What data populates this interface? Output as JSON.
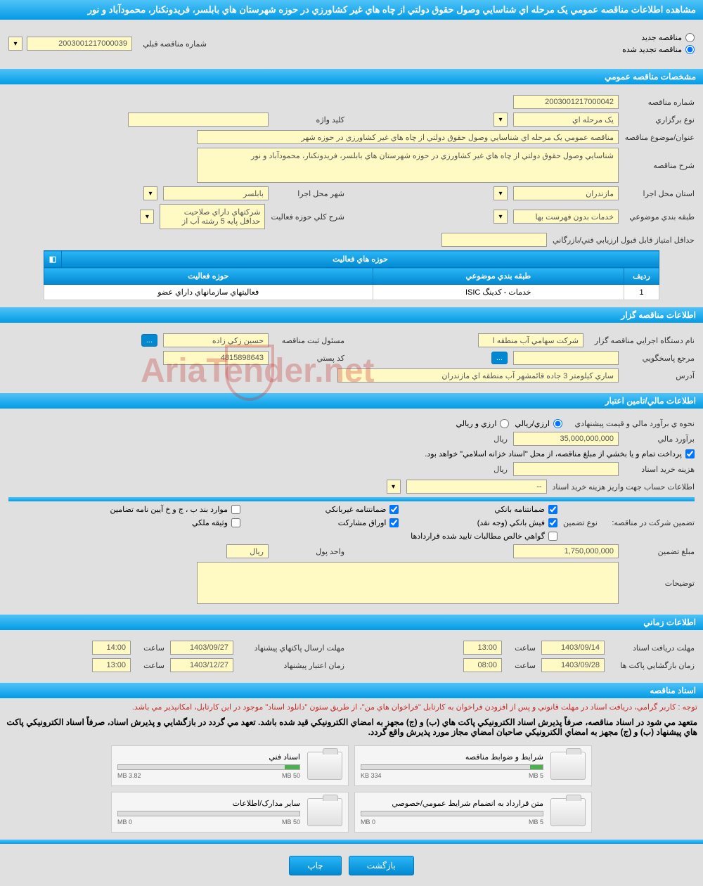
{
  "page_title": "مشاهده اطلاعات مناقصه عمومي يک مرحله اي شناسايي وصول حقوق دولتي از چاه هاي غير کشاورزي در حوزه شهرستان هاي بابلسر، فريدونکنار، محمودآباد و نور",
  "radios": {
    "new": "مناقصه جديد",
    "renewed": "مناقصه تجديد شده"
  },
  "prev_number_label": "شماره مناقصه قبلي",
  "prev_number": "2003001217000039",
  "sections": {
    "general": "مشخصات مناقصه عمومي",
    "organizer": "اطلاعات مناقصه گزار",
    "financial": "اطلاعات مالي/تامين اعتبار",
    "schedule": "اطلاعات زماني",
    "documents": "اسناد مناقصه"
  },
  "general": {
    "number_label": "شماره مناقصه",
    "number": "2003001217000042",
    "type_label": "نوع برگزاري",
    "type": "يک مرحله اي",
    "keyword_label": "کليد واژه",
    "keyword": "",
    "title_label": "عنوان/موضوع مناقصه",
    "title": "مناقصه عمومي يک مرحله اي شناسايي وصول حقوق دولتي از چاه هاي غير کشاورزي در حوزه شهر",
    "desc_label": "شرح مناقصه",
    "desc": "شناسايي وصول حقوق دولتي از چاه هاي غير کشاورزي در حوزه شهرستان هاي بابلسر، فريدونکنار، محمودآباد و نور",
    "province_label": "استان محل اجرا",
    "province": "مازندران",
    "city_label": "شهر محل اجرا",
    "city": "بابلسر",
    "category_label": "طبقه بندي موضوعي",
    "category": "خدمات بدون فهرست بها",
    "activity_desc_label": "شرح کلي حوزه فعاليت",
    "activity_desc": "شرکتهاي داراي صلاحيت حداقل پايه 5 رشته آب از",
    "min_score_label": "حداقل امتياز قابل قبول ارزيابي فني/بازرگاني",
    "min_score": ""
  },
  "activity_table": {
    "title": "حوزه هاي فعاليت",
    "col_row": "رديف",
    "col_category": "طبقه بندي موضوعي",
    "col_activity": "حوزه فعاليت",
    "rows": [
      {
        "idx": "1",
        "category": "خدمات - کدينگ ISIC",
        "activity": "فعاليتهاي سازمانهاي داراي عضو"
      }
    ]
  },
  "organizer": {
    "agency_label": "نام دستگاه اجرايي مناقصه گزار",
    "agency": "شرکت سهامي آب منطقه ا",
    "registrar_label": "مسئول ثبت مناقصه",
    "registrar": "حسين زکي زاده",
    "more": "...",
    "contact_label": "مرجع پاسخگويي",
    "contact": "",
    "postal_label": "کد پستي",
    "postal": "4815898643",
    "address_label": "آدرس",
    "address": "ساري کيلومتر 3 جاده قائمشهر آب منطقه اي مازندران"
  },
  "financial": {
    "method_label": "نحوه ي برآورد مالي و قيمت پيشنهادي",
    "method_opt1": "ارزي/ريالي",
    "method_opt2": "ارزي و ريالي",
    "estimate_label": "برآورد مالي",
    "estimate": "35,000,000,000",
    "currency": "ريال",
    "payment_note": "پرداخت تمام و يا بخشي از مبلغ مناقصه، از محل \"اسناد خزانه اسلامي\" خواهد بود.",
    "doc_cost_label": "هزينه خريد اسناد",
    "doc_cost": "",
    "account_label": "اطلاعات حساب جهت واريز هزينه خريد اسناد",
    "account": "--",
    "guarantee_label": "تضمين شرکت در مناقصه:",
    "guarantee_type_label": "نوع تضمين",
    "chk1": "ضمانتنامه بانکي",
    "chk2": "ضمانتنامه غيربانکي",
    "chk3": "موارد بند ب ، ج و خ آيين نامه تضامين",
    "chk4": "فيش بانکي (وجه نقد)",
    "chk5": "اوراق مشارکت",
    "chk6": "وثيقه ملکي",
    "chk7": "گواهي خالص مطالبات تاييد شده قراردادها",
    "amount_label": "مبلغ تضمين",
    "amount": "1,750,000,000",
    "unit_label": "واحد پول",
    "unit": "ريال",
    "notes_label": "توضيحات",
    "notes": ""
  },
  "schedule": {
    "doc_receive_label": "مهلت دريافت اسناد",
    "doc_receive_date": "1403/09/14",
    "doc_receive_time": "13:00",
    "proposal_label": "مهلت ارسال پاکتهاي پيشنهاد",
    "proposal_date": "1403/09/27",
    "proposal_time": "14:00",
    "open_label": "زمان بازگشايي پاکت ها",
    "open_date": "1403/09/28",
    "open_time": "08:00",
    "validity_label": "زمان اعتبار پيشنهاد",
    "validity_date": "1403/12/27",
    "validity_time": "13:00",
    "time_label": "ساعت"
  },
  "docs": {
    "note1": "توجه : کاربر گرامي، دريافت اسناد در مهلت قانوني و پس از افزودن فراخوان به کارتابل \"فراخوان هاي من\"، از طريق ستون \"دانلود اسناد\" موجود در اين کارتابل، امکانپذير مي باشد.",
    "note2": "متعهد مي شود در اسناد مناقصه، صرفاً پذيرش اسناد الکترونيکي پاکت هاي (ب) و (ج) مجهز به امضاي الکترونيکي قيد شده باشد. تعهد مي گردد در بازگشايي و پذيرش اسناد، صرفاً اسناد الکترونيکي پاکت هاي پيشنهاد (ب) و (ج) مجهز به امضاي الکترونيکي صاحبان امضاي مجاز مورد پذيرش واقع گردد.",
    "files": [
      {
        "title": "شرايط و ضوابط مناقصه",
        "used": "334 KB",
        "total": "5 MB",
        "pct": 7
      },
      {
        "title": "اسناد فني",
        "used": "3.82 MB",
        "total": "50 MB",
        "pct": 8
      },
      {
        "title": "متن قرارداد به انضمام شرايط عمومي/خصوصي",
        "used": "0 MB",
        "total": "5 MB",
        "pct": 0
      },
      {
        "title": "ساير مدارک/اطلاعات",
        "used": "0 MB",
        "total": "50 MB",
        "pct": 0
      }
    ]
  },
  "footer": {
    "back": "بازگشت",
    "print": "چاپ"
  },
  "watermark": "AriaTender.net"
}
